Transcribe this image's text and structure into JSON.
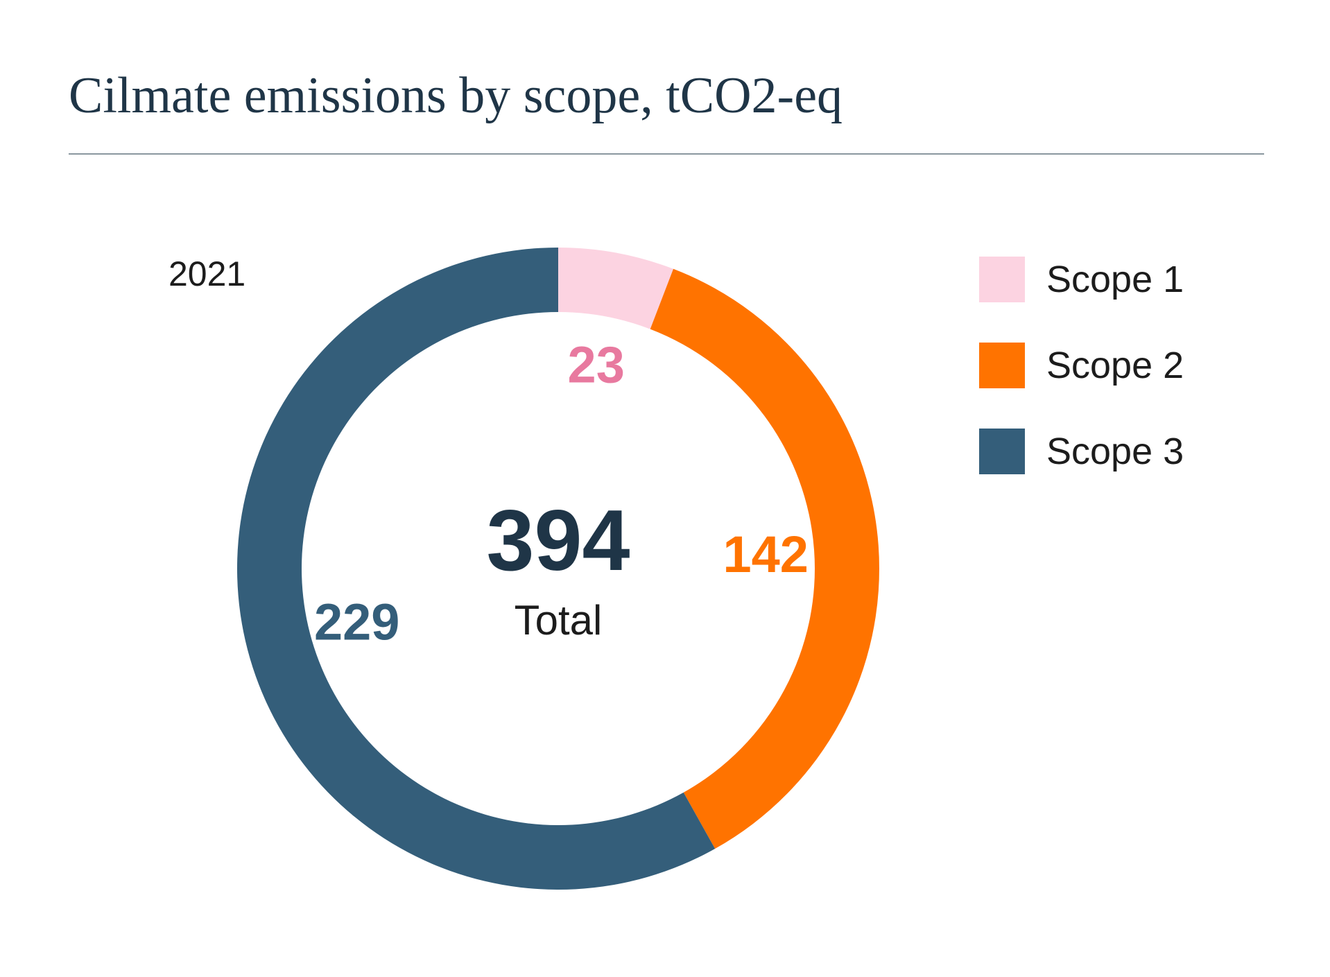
{
  "title": "Cilmate emissions by scope, tCO2-eq",
  "year_label": "2021",
  "center": {
    "total_value": "394",
    "total_label": "Total"
  },
  "legend": [
    {
      "label": "Scope 1",
      "color": "#fcd3e1"
    },
    {
      "label": "Scope 2",
      "color": "#ff7300"
    },
    {
      "label": "Scope 3",
      "color": "#345e7a"
    }
  ],
  "chart_data": {
    "type": "pie",
    "variant": "donut",
    "title": "Cilmate emissions by scope, tCO2-eq",
    "subtitle": "2021",
    "categories": [
      "Scope 1",
      "Scope 2",
      "Scope 3"
    ],
    "values": [
      23,
      142,
      229
    ],
    "data_labels": [
      "23",
      "142",
      "229"
    ],
    "label_colors": [
      "#e8799f",
      "#ff7300",
      "#345e7a"
    ],
    "colors": [
      "#fcd3e1",
      "#ff7300",
      "#345e7a"
    ],
    "total": 394,
    "legend_position": "right",
    "start_angle": "top, clockwise"
  }
}
